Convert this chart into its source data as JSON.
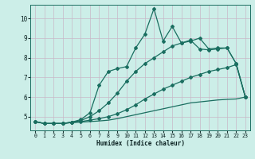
{
  "xlabel": "Humidex (Indice chaleur)",
  "ylabel": "",
  "xlim": [
    -0.5,
    23.5
  ],
  "ylim": [
    4.3,
    10.7
  ],
  "yticks": [
    5,
    6,
    7,
    8,
    9,
    10
  ],
  "xticks": [
    0,
    1,
    2,
    3,
    4,
    5,
    6,
    7,
    8,
    9,
    10,
    11,
    12,
    13,
    14,
    15,
    16,
    17,
    18,
    19,
    20,
    21,
    22,
    23
  ],
  "bg_color": "#cceee8",
  "line_color": "#1a6e60",
  "lines": [
    {
      "x": [
        0,
        1,
        2,
        3,
        4,
        5,
        6,
        7,
        8,
        9,
        10,
        11,
        12,
        13,
        14,
        15,
        16,
        17,
        18,
        19,
        20,
        21,
        22,
        23
      ],
      "y": [
        4.75,
        4.65,
        4.65,
        4.65,
        4.7,
        4.72,
        4.75,
        4.78,
        4.82,
        4.9,
        5.0,
        5.1,
        5.2,
        5.3,
        5.4,
        5.5,
        5.6,
        5.7,
        5.75,
        5.8,
        5.85,
        5.88,
        5.9,
        6.0
      ],
      "marker": null,
      "ls": "-",
      "lw": 0.9,
      "ms": 0
    },
    {
      "x": [
        0,
        1,
        2,
        3,
        4,
        5,
        6,
        7,
        8,
        9,
        10,
        11,
        12,
        13,
        14,
        15,
        16,
        17,
        18,
        19,
        20,
        21,
        22,
        23
      ],
      "y": [
        4.75,
        4.65,
        4.65,
        4.65,
        4.7,
        4.75,
        4.82,
        4.9,
        5.0,
        5.15,
        5.35,
        5.6,
        5.9,
        6.15,
        6.4,
        6.6,
        6.8,
        7.0,
        7.15,
        7.3,
        7.4,
        7.5,
        7.65,
        6.0
      ],
      "marker": "D",
      "ls": "-",
      "lw": 0.9,
      "ms": 2.0
    },
    {
      "x": [
        0,
        1,
        2,
        3,
        4,
        5,
        6,
        7,
        8,
        9,
        10,
        11,
        12,
        13,
        14,
        15,
        16,
        17,
        18,
        19,
        20,
        21,
        22,
        23
      ],
      "y": [
        4.75,
        4.65,
        4.65,
        4.65,
        4.72,
        4.8,
        5.0,
        5.3,
        5.7,
        6.2,
        6.8,
        7.3,
        7.7,
        8.0,
        8.3,
        8.6,
        8.75,
        8.9,
        8.45,
        8.4,
        8.45,
        8.5,
        7.7,
        6.0
      ],
      "marker": "D",
      "ls": "-",
      "lw": 0.9,
      "ms": 2.0
    },
    {
      "x": [
        0,
        1,
        2,
        3,
        4,
        5,
        6,
        7,
        8,
        9,
        10,
        11,
        12,
        13,
        14,
        15,
        16,
        17,
        18,
        19,
        20,
        21,
        22,
        23
      ],
      "y": [
        4.75,
        4.65,
        4.65,
        4.65,
        4.72,
        4.85,
        5.2,
        6.6,
        7.3,
        7.45,
        7.55,
        8.5,
        9.2,
        10.5,
        8.85,
        9.6,
        8.75,
        8.85,
        9.0,
        8.45,
        8.5,
        8.5,
        7.7,
        6.0
      ],
      "marker": "D",
      "ls": "-",
      "lw": 0.9,
      "ms": 2.0
    }
  ]
}
